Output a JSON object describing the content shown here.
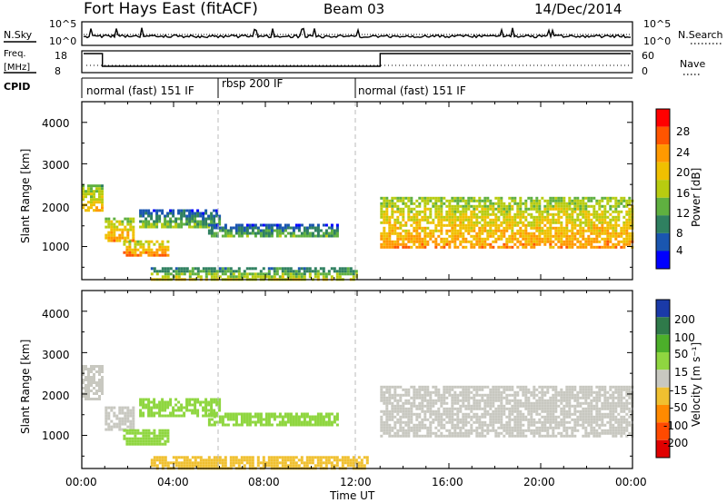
{
  "header": {
    "title": "Fort Hays East (fitACF)",
    "beam": "Beam 03",
    "date": "14/Dec/2014"
  },
  "noise_panel": {
    "left_label": "N.Sky",
    "right_label": "N.Search",
    "left_ticks": [
      "10^5",
      "10^0"
    ],
    "right_ticks": [
      "10^5",
      "10^0"
    ]
  },
  "freq_panel": {
    "left_label_line1": "Freq.",
    "left_label_line2": "[MHz]",
    "left_ticks": [
      "18",
      "8"
    ],
    "right_label": "Nave",
    "right_ticks": [
      "60",
      "0"
    ]
  },
  "cpid_panel": {
    "label": "CPID",
    "segments": [
      {
        "label": "normal (fast) 151 IF",
        "start": 0,
        "end": 6
      },
      {
        "label": "rbsp 200 IF",
        "start": 6,
        "end": 12
      },
      {
        "label": "normal (fast) 151 IF",
        "start": 12,
        "end": 24
      }
    ]
  },
  "x_axis": {
    "label": "Time UT",
    "ticks": [
      "00:00",
      "04:00",
      "08:00",
      "12:00",
      "16:00",
      "20:00",
      "00:00"
    ]
  },
  "power_panel": {
    "ylabel": "Slant Range [km]",
    "yticks": [
      "1000",
      "2000",
      "3000",
      "4000"
    ],
    "colorbar_label": "Power [dB]",
    "colorbar_ticks": [
      "28",
      "24",
      "20",
      "16",
      "12",
      "8",
      "4"
    ],
    "colors": [
      "#ff0000",
      "#ff5500",
      "#ff9900",
      "#f0c000",
      "#b8cc10",
      "#5fb040",
      "#2f8060",
      "#1a56b0",
      "#0000ff"
    ]
  },
  "velocity_panel": {
    "ylabel": "Slant Range [km]",
    "yticks": [
      "1000",
      "2000",
      "3000",
      "4000"
    ],
    "colorbar_label": "Velocity [m s⁻¹]",
    "colorbar_ticks": [
      "200",
      "100",
      "50",
      "15",
      "-15",
      "-50",
      "-100",
      "-200"
    ],
    "colors": [
      "#1a3aa8",
      "#2f7a4a",
      "#4caf2a",
      "#8fd640",
      "#c8c8c0",
      "#f0c030",
      "#ff8a00",
      "#ff4a00",
      "#e00000"
    ]
  },
  "chart_data": {
    "type": "heatmap",
    "title": "Fort Hays East (fitACF)",
    "x_unit": "hours UT",
    "xlim": [
      0,
      24
    ],
    "ylim": [
      200,
      4500
    ],
    "power_bands": [
      {
        "t0": 0.0,
        "t1": 0.9,
        "r0": 1900,
        "r1": 2500,
        "level": 16
      },
      {
        "t0": 1.0,
        "t1": 2.2,
        "r0": 1150,
        "r1": 1700,
        "level": 18
      },
      {
        "t0": 1.8,
        "t1": 3.8,
        "r0": 800,
        "r1": 1150,
        "level": 20
      },
      {
        "t0": 2.5,
        "t1": 6.0,
        "r0": 1500,
        "r1": 1900,
        "level": 8
      },
      {
        "t0": 5.5,
        "t1": 11.2,
        "r0": 1250,
        "r1": 1550,
        "level": 8
      },
      {
        "t0": 3.0,
        "t1": 12.0,
        "r0": 220,
        "r1": 500,
        "level": 12
      },
      {
        "t0": 13.0,
        "t1": 24.0,
        "r0": 950,
        "r1": 2200,
        "level": 18
      }
    ],
    "velocity_bands": [
      {
        "t0": 0.0,
        "t1": 0.9,
        "r0": 1900,
        "r1": 2700,
        "velocity": 0
      },
      {
        "t0": 1.0,
        "t1": 2.2,
        "r0": 1150,
        "r1": 1700,
        "velocity": 0
      },
      {
        "t0": 1.8,
        "t1": 3.8,
        "r0": 800,
        "r1": 1150,
        "velocity": 40
      },
      {
        "t0": 2.5,
        "t1": 6.0,
        "r0": 1500,
        "r1": 1900,
        "velocity": 30
      },
      {
        "t0": 5.5,
        "t1": 11.2,
        "r0": 1250,
        "r1": 1550,
        "velocity": 35
      },
      {
        "t0": 3.0,
        "t1": 12.5,
        "r0": 220,
        "r1": 500,
        "velocity": -25
      },
      {
        "t0": 13.0,
        "t1": 24.0,
        "r0": 950,
        "r1": 2200,
        "velocity": 0
      }
    ]
  }
}
